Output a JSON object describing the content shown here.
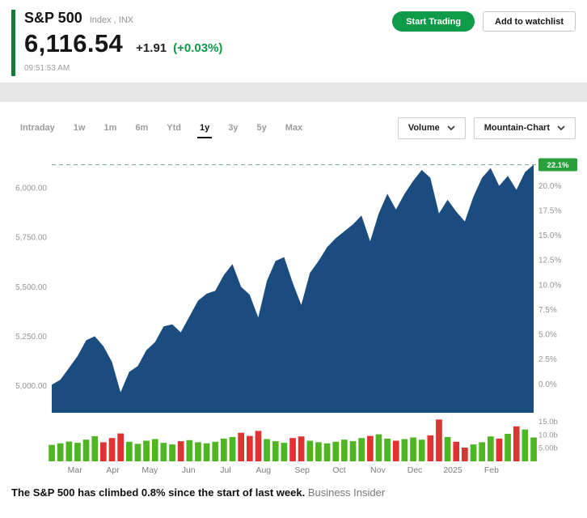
{
  "header": {
    "title": "S&P 500",
    "subtitle": "Index , INX",
    "price": "6,116.54",
    "change": "+1.91",
    "change_pct": "(+0.03%)",
    "timestamp": "09:51:53 AM",
    "start_trading_label": "Start Trading",
    "watchlist_label": "Add to watchlist"
  },
  "toolbar": {
    "ranges": [
      "Intraday",
      "1w",
      "1m",
      "6m",
      "Ytd",
      "1y",
      "3y",
      "5y",
      "Max"
    ],
    "active_range": "1y",
    "volume_label": "Volume",
    "chart_type_label": "Mountain-Chart"
  },
  "caption": {
    "text": "The S&P 500 has climbed 0.8% since the start of last week.",
    "source": "Business Insider"
  },
  "colors": {
    "accent_green": "#0f7c3e",
    "button_green": "#0f9b47",
    "change_green": "#0a9b48",
    "band_gray": "#e7e7e7"
  },
  "chart_data": {
    "type": "area",
    "title": "S&P 500 1-year mountain chart with volume",
    "current_value": 6116.54,
    "current_percent_label": "22.1%",
    "percent_base": 5009.4,
    "ylim": [
      4880,
      6180
    ],
    "vol_axis_max": 16.5,
    "colors": {
      "area": "#1a4c80",
      "dash": "#79a98e",
      "badge": "#29a03c",
      "vol_up": "#4eb523",
      "vol_down": "#e03232"
    },
    "series": [
      {
        "name": "S&P 500",
        "values": [
          5005,
          5030,
          5090,
          5150,
          5230,
          5250,
          5200,
          5120,
          4967,
          5070,
          5100,
          5180,
          5220,
          5300,
          5310,
          5270,
          5350,
          5430,
          5465,
          5480,
          5560,
          5615,
          5500,
          5460,
          5345,
          5530,
          5630,
          5650,
          5520,
          5408,
          5570,
          5630,
          5700,
          5745,
          5780,
          5815,
          5860,
          5730,
          5870,
          5970,
          5890,
          5970,
          6035,
          6090,
          6050,
          5870,
          5940,
          5880,
          5830,
          5955,
          6050,
          6100,
          6010,
          6060,
          5990,
          6080,
          6116.54
        ]
      }
    ],
    "volume": {
      "unit": "billions",
      "values": [
        6.2,
        6.8,
        7.5,
        7.0,
        8.2,
        9.5,
        7.2,
        8.8,
        10.5,
        7.4,
        6.6,
        7.8,
        8.4,
        7.0,
        6.4,
        7.6,
        8.0,
        7.2,
        6.8,
        7.4,
        8.6,
        9.2,
        10.8,
        9.6,
        11.5,
        8.4,
        7.6,
        7.0,
        8.8,
        9.4,
        7.8,
        7.2,
        6.8,
        7.4,
        8.2,
        7.6,
        8.8,
        9.6,
        10.2,
        8.6,
        7.8,
        8.4,
        9.0,
        8.2,
        9.8,
        15.8,
        9.2,
        7.4,
        5.2,
        6.4,
        7.2,
        9.4,
        8.6,
        10.4,
        13.2,
        12.0,
        9.0
      ]
    },
    "y_axis_left": [
      {
        "label": "6,000.00",
        "value": 6000
      },
      {
        "label": "5,750.00",
        "value": 5750
      },
      {
        "label": "5,500.00",
        "value": 5500
      },
      {
        "label": "5,250.00",
        "value": 5250
      },
      {
        "label": "5,000.00",
        "value": 5000
      }
    ],
    "y_axis_right": [
      {
        "label": "20.0%",
        "value": 20
      },
      {
        "label": "17.5%",
        "value": 17.5
      },
      {
        "label": "15.0%",
        "value": 15
      },
      {
        "label": "12.5%",
        "value": 12.5
      },
      {
        "label": "10.0%",
        "value": 10
      },
      {
        "label": "7.5%",
        "value": 7.5
      },
      {
        "label": "5.0%",
        "value": 5
      },
      {
        "label": "2.5%",
        "value": 2.5
      },
      {
        "label": "0.0%",
        "value": 0
      }
    ],
    "volume_axis": [
      {
        "label": "15.0b",
        "value": 15
      },
      {
        "label": "10.0b",
        "value": 10
      },
      {
        "label": "5.00b",
        "value": 5
      }
    ],
    "x_months": [
      {
        "label": "Mar",
        "i": 2.7
      },
      {
        "label": "Apr",
        "i": 7.1
      },
      {
        "label": "May",
        "i": 11.4
      },
      {
        "label": "Jun",
        "i": 15.9
      },
      {
        "label": "Jul",
        "i": 20.2
      },
      {
        "label": "Aug",
        "i": 24.6
      },
      {
        "label": "Sep",
        "i": 29.1
      },
      {
        "label": "Oct",
        "i": 33.4
      },
      {
        "label": "Nov",
        "i": 37.9
      },
      {
        "label": "Dec",
        "i": 42.2
      },
      {
        "label": "2025",
        "i": 46.6
      },
      {
        "label": "Feb",
        "i": 51.1
      }
    ]
  }
}
